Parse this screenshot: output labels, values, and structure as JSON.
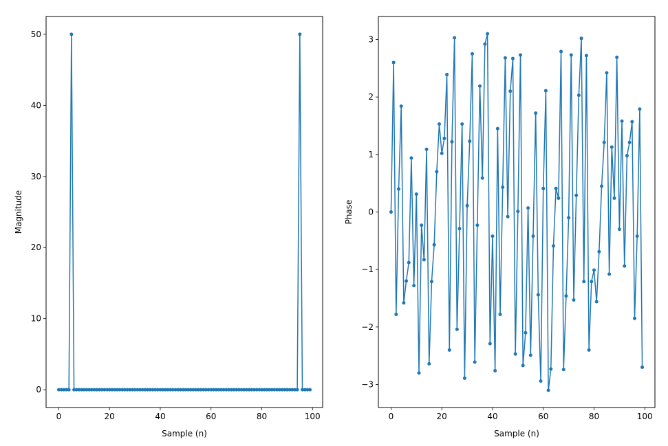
{
  "chart_data": [
    {
      "type": "line",
      "xlabel": "Sample (n)",
      "ylabel": "Magnitude",
      "xlim": [
        -5,
        104
      ],
      "ylim": [
        -2.5,
        52.5
      ],
      "xticks": [
        0,
        20,
        40,
        60,
        80,
        100
      ],
      "xtick_labels": [
        "0",
        "20",
        "40",
        "60",
        "80",
        "100"
      ],
      "yticks": [
        0,
        10,
        20,
        30,
        40,
        50
      ],
      "ytick_labels": [
        "0",
        "10",
        "20",
        "30",
        "40",
        "50"
      ],
      "grid": false,
      "color": "#1f77b4",
      "marker": "circle",
      "x": [
        0,
        1,
        2,
        3,
        4,
        5,
        6,
        7,
        8,
        9,
        10,
        11,
        12,
        13,
        14,
        15,
        16,
        17,
        18,
        19,
        20,
        21,
        22,
        23,
        24,
        25,
        26,
        27,
        28,
        29,
        30,
        31,
        32,
        33,
        34,
        35,
        36,
        37,
        38,
        39,
        40,
        41,
        42,
        43,
        44,
        45,
        46,
        47,
        48,
        49,
        50,
        51,
        52,
        53,
        54,
        55,
        56,
        57,
        58,
        59,
        60,
        61,
        62,
        63,
        64,
        65,
        66,
        67,
        68,
        69,
        70,
        71,
        72,
        73,
        74,
        75,
        76,
        77,
        78,
        79,
        80,
        81,
        82,
        83,
        84,
        85,
        86,
        87,
        88,
        89,
        90,
        91,
        92,
        93,
        94,
        95,
        96,
        97,
        98,
        99
      ],
      "values": [
        0,
        0,
        0,
        0,
        0,
        50,
        0,
        0,
        0,
        0,
        0,
        0,
        0,
        0,
        0,
        0,
        0,
        0,
        0,
        0,
        0,
        0,
        0,
        0,
        0,
        0,
        0,
        0,
        0,
        0,
        0,
        0,
        0,
        0,
        0,
        0,
        0,
        0,
        0,
        0,
        0,
        0,
        0,
        0,
        0,
        0,
        0,
        0,
        0,
        0,
        0,
        0,
        0,
        0,
        0,
        0,
        0,
        0,
        0,
        0,
        0,
        0,
        0,
        0,
        0,
        0,
        0,
        0,
        0,
        0,
        0,
        0,
        0,
        0,
        0,
        0,
        0,
        0,
        0,
        0,
        0,
        0,
        0,
        0,
        0,
        0,
        0,
        0,
        0,
        0,
        0,
        0,
        0,
        0,
        0,
        50,
        0,
        0,
        0,
        0
      ]
    },
    {
      "type": "line",
      "xlabel": "Sample (n)",
      "ylabel": "Phase",
      "xlim": [
        -5,
        104
      ],
      "ylim": [
        -3.4,
        3.4
      ],
      "xticks": [
        0,
        20,
        40,
        60,
        80,
        100
      ],
      "xtick_labels": [
        "0",
        "20",
        "40",
        "60",
        "80",
        "100"
      ],
      "yticks": [
        -3,
        -2,
        -1,
        0,
        1,
        2,
        3
      ],
      "ytick_labels": [
        "−3",
        "−2",
        "−1",
        "0",
        "1",
        "2",
        "3"
      ],
      "grid": false,
      "color": "#1f77b4",
      "marker": "circle",
      "x": [
        0,
        1,
        2,
        3,
        4,
        5,
        6,
        7,
        8,
        9,
        10,
        11,
        12,
        13,
        14,
        15,
        16,
        17,
        18,
        19,
        20,
        21,
        22,
        23,
        24,
        25,
        26,
        27,
        28,
        29,
        30,
        31,
        32,
        33,
        34,
        35,
        36,
        37,
        38,
        39,
        40,
        41,
        42,
        43,
        44,
        45,
        46,
        47,
        48,
        49,
        50,
        51,
        52,
        53,
        54,
        55,
        56,
        57,
        58,
        59,
        60,
        61,
        62,
        63,
        64,
        65,
        66,
        67,
        68,
        69,
        70,
        71,
        72,
        73,
        74,
        75,
        76,
        77,
        78,
        79,
        80,
        81,
        82,
        83,
        84,
        85,
        86,
        87,
        88,
        89,
        90,
        91,
        92,
        93,
        94,
        95,
        96,
        97,
        98,
        99
      ],
      "values": [
        0,
        2.6,
        -1.78,
        0.4,
        1.84,
        -1.58,
        -1.2,
        -0.88,
        0.94,
        -1.28,
        0.31,
        -2.8,
        -0.23,
        -0.83,
        1.09,
        -2.64,
        -1.21,
        -0.57,
        0.7,
        1.53,
        1.02,
        1.28,
        2.39,
        -2.4,
        1.22,
        3.03,
        -2.04,
        -0.29,
        1.53,
        -2.89,
        0.11,
        1.23,
        2.75,
        -2.61,
        -0.23,
        2.19,
        0.59,
        2.92,
        3.1,
        -2.29,
        -0.42,
        -2.76,
        1.45,
        -1.78,
        0.43,
        2.68,
        -0.08,
        2.1,
        2.67,
        -2.47,
        0.01,
        2.73,
        -2.67,
        -2.1,
        0.07,
        -2.49,
        -0.42,
        1.72,
        -1.44,
        -2.94,
        0.41,
        2.11,
        -3.1,
        -2.73,
        -0.59,
        0.41,
        0.24,
        2.79,
        -2.74,
        -1.46,
        -0.1,
        2.73,
        -1.53,
        0.29,
        2.03,
        3.02,
        -1.21,
        2.72,
        -2.4,
        -1.21,
        -1.01,
        -1.56,
        -0.69,
        0.45,
        1.21,
        2.42,
        -1.08,
        1.13,
        0.24,
        2.69,
        -0.3,
        1.58,
        -0.94,
        0.98,
        1.21,
        1.57,
        -1.85,
        -0.42,
        1.79,
        -2.7
      ]
    }
  ]
}
